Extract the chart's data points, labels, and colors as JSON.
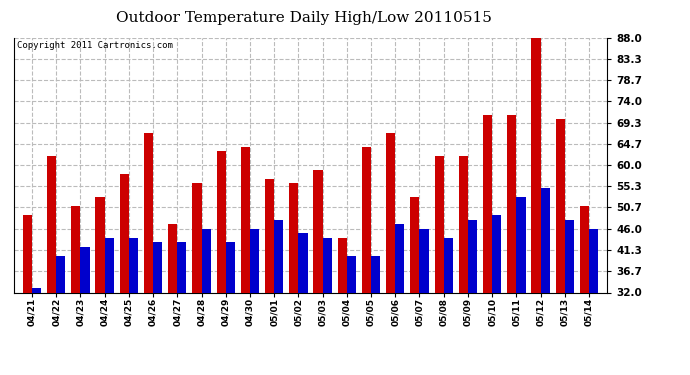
{
  "title": "Outdoor Temperature Daily High/Low 20110515",
  "copyright": "Copyright 2011 Cartronics.com",
  "categories": [
    "04/21",
    "04/22",
    "04/23",
    "04/24",
    "04/25",
    "04/26",
    "04/27",
    "04/28",
    "04/29",
    "04/30",
    "05/01",
    "05/02",
    "05/03",
    "05/04",
    "05/05",
    "05/06",
    "05/07",
    "05/08",
    "05/09",
    "05/10",
    "05/11",
    "05/12",
    "05/13",
    "05/14"
  ],
  "highs": [
    49,
    62,
    51,
    53,
    58,
    67,
    47,
    56,
    63,
    64,
    57,
    56,
    59,
    44,
    64,
    67,
    53,
    62,
    62,
    71,
    71,
    88,
    70,
    51
  ],
  "lows": [
    33,
    40,
    42,
    44,
    44,
    43,
    43,
    46,
    43,
    46,
    48,
    45,
    44,
    40,
    40,
    47,
    46,
    44,
    48,
    49,
    53,
    55,
    48,
    46
  ],
  "high_color": "#cc0000",
  "low_color": "#0000cc",
  "bg_color": "#ffffff",
  "plot_bg_color": "#ffffff",
  "grid_color": "#bbbbbb",
  "title_fontsize": 11,
  "copyright_fontsize": 6.5,
  "ylim": [
    32.0,
    88.0
  ],
  "yticks": [
    32.0,
    36.7,
    41.3,
    46.0,
    50.7,
    55.3,
    60.0,
    64.7,
    69.3,
    74.0,
    78.7,
    83.3,
    88.0
  ]
}
